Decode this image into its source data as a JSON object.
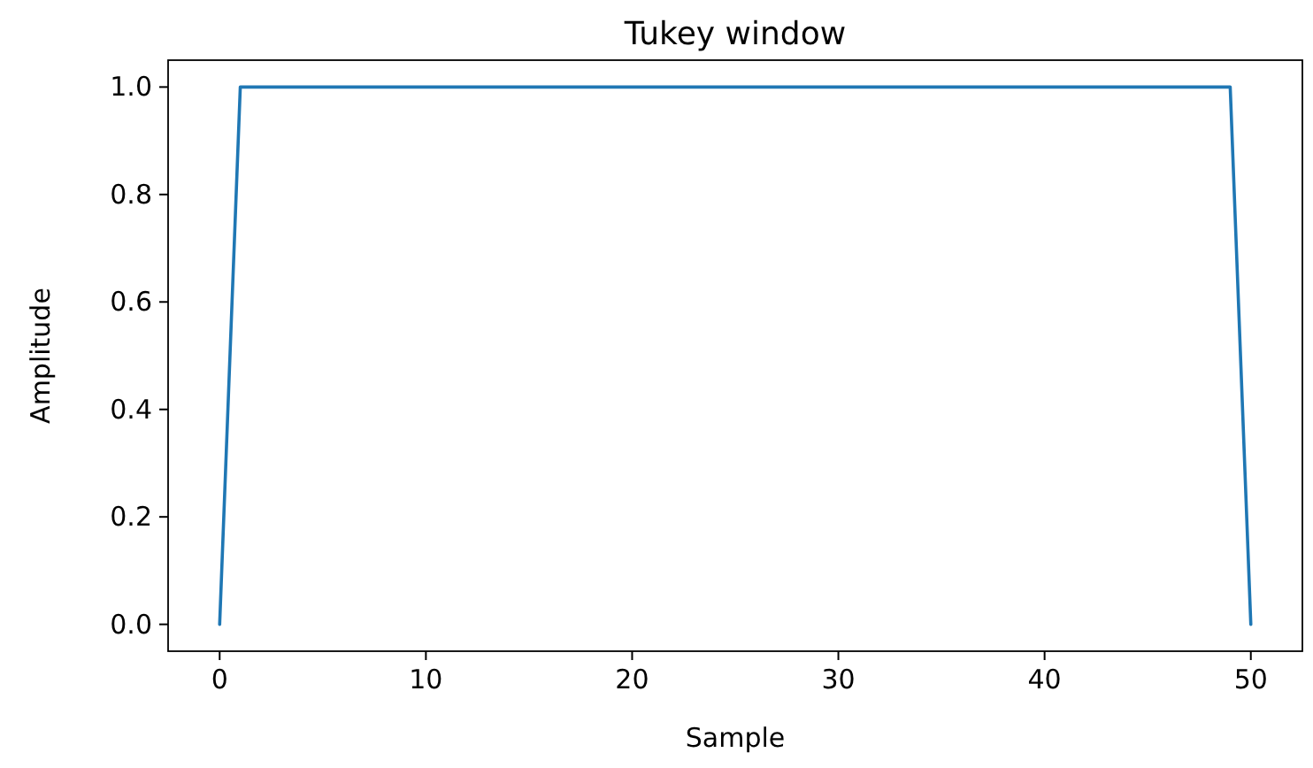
{
  "chart_data": {
    "type": "line",
    "title": "Tukey window",
    "xlabel": "Sample",
    "ylabel": "Amplitude",
    "x": [
      0,
      1,
      2,
      3,
      4,
      5,
      6,
      7,
      8,
      9,
      10,
      11,
      12,
      13,
      14,
      15,
      16,
      17,
      18,
      19,
      20,
      21,
      22,
      23,
      24,
      25,
      26,
      27,
      28,
      29,
      30,
      31,
      32,
      33,
      34,
      35,
      36,
      37,
      38,
      39,
      40,
      41,
      42,
      43,
      44,
      45,
      46,
      47,
      48,
      49,
      50
    ],
    "series": [
      {
        "color": "#1f77b4",
        "values": [
          0,
          1,
          1,
          1,
          1,
          1,
          1,
          1,
          1,
          1,
          1,
          1,
          1,
          1,
          1,
          1,
          1,
          1,
          1,
          1,
          1,
          1,
          1,
          1,
          1,
          1,
          1,
          1,
          1,
          1,
          1,
          1,
          1,
          1,
          1,
          1,
          1,
          1,
          1,
          1,
          1,
          1,
          1,
          1,
          1,
          1,
          1,
          1,
          1,
          1,
          0
        ]
      }
    ],
    "xlim": [
      -2.5,
      52.5
    ],
    "ylim": [
      -0.05,
      1.05
    ],
    "xticks": [
      0,
      10,
      20,
      30,
      40,
      50
    ],
    "yticks": [
      {
        "value": 0,
        "label": "0.0"
      },
      {
        "value": 0.2,
        "label": "0.2"
      },
      {
        "value": 0.4,
        "label": "0.4"
      },
      {
        "value": 0.6,
        "label": "0.6"
      },
      {
        "value": 0.8,
        "label": "0.8"
      },
      {
        "value": 1,
        "label": "1.0"
      }
    ],
    "grid": false
  }
}
